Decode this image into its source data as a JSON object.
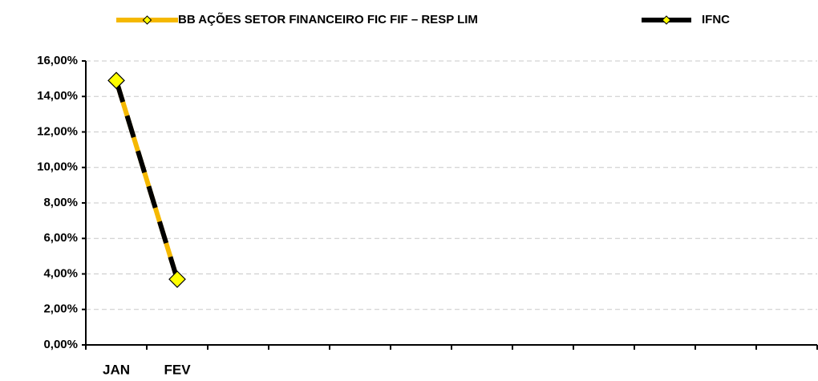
{
  "chart_data": {
    "type": "line",
    "categories": [
      "JAN",
      "FEV",
      null,
      null,
      null,
      null,
      null,
      null,
      null,
      null,
      null,
      null
    ],
    "series": [
      {
        "name": "BB AÇÕES SETOR FINANCEIRO FIC FIF – RESP LIM",
        "color": "#f5b800",
        "values": [
          14.9,
          3.7,
          null,
          null,
          null,
          null,
          null,
          null,
          null,
          null,
          null,
          null
        ]
      },
      {
        "name": "IFNC",
        "color": "#000000",
        "values": [
          14.9,
          3.7,
          null,
          null,
          null,
          null,
          null,
          null,
          null,
          null,
          null,
          null
        ]
      }
    ],
    "ylim": [
      0,
      16
    ],
    "yticks": [
      {
        "value": 0,
        "label": "0,00%"
      },
      {
        "value": 2,
        "label": "2,00%"
      },
      {
        "value": 4,
        "label": "4,00%"
      },
      {
        "value": 6,
        "label": "6,00%"
      },
      {
        "value": 8,
        "label": "8,00%"
      },
      {
        "value": 10,
        "label": "10,00%"
      },
      {
        "value": 12,
        "label": "12,00%"
      },
      {
        "value": 14,
        "label": "14,00%"
      },
      {
        "value": 16,
        "label": "16,00%"
      }
    ],
    "grid": true
  }
}
